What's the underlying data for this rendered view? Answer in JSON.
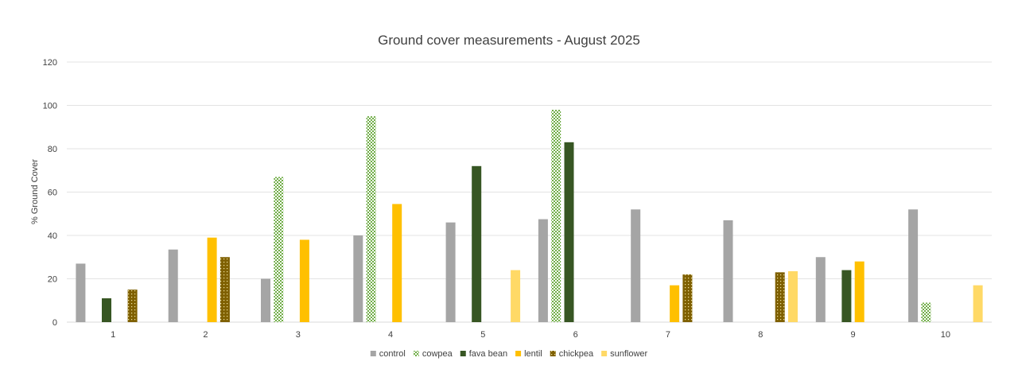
{
  "chart_data": {
    "type": "bar",
    "title": "Ground cover measurements - August 2025",
    "xlabel": "",
    "ylabel": "% Ground Cover",
    "ylim": [
      0,
      120
    ],
    "yticks": [
      0,
      20,
      40,
      60,
      80,
      100,
      120
    ],
    "grid": true,
    "legend_position": "bottom",
    "categories": [
      "1",
      "2",
      "3",
      "4",
      "5",
      "6",
      "7",
      "8",
      "9",
      "10"
    ],
    "series": [
      {
        "name": "control",
        "color": "#a5a5a5",
        "pattern": "solid",
        "values": [
          27,
          33.5,
          20,
          40,
          46,
          47.5,
          52,
          47,
          30,
          52
        ]
      },
      {
        "name": "cowpea",
        "color": "#70ad47",
        "pattern": "checker",
        "values": [
          null,
          null,
          67,
          95,
          null,
          98,
          null,
          null,
          null,
          9
        ]
      },
      {
        "name": "fava bean",
        "color": "#375623",
        "pattern": "solid",
        "values": [
          11,
          null,
          null,
          null,
          72,
          83,
          null,
          null,
          24,
          null
        ]
      },
      {
        "name": "lentil",
        "color": "#ffc000",
        "pattern": "solid",
        "values": [
          null,
          39,
          38,
          54.5,
          null,
          null,
          17,
          null,
          28,
          null
        ]
      },
      {
        "name": "chickpea",
        "color": "#7f6000",
        "pattern": "dots",
        "values": [
          15,
          30,
          null,
          null,
          null,
          null,
          22,
          23,
          null,
          null
        ]
      },
      {
        "name": "sunflower",
        "color": "#ffd966",
        "pattern": "solid",
        "values": [
          null,
          null,
          null,
          null,
          24,
          null,
          null,
          23.5,
          null,
          17
        ]
      }
    ]
  }
}
